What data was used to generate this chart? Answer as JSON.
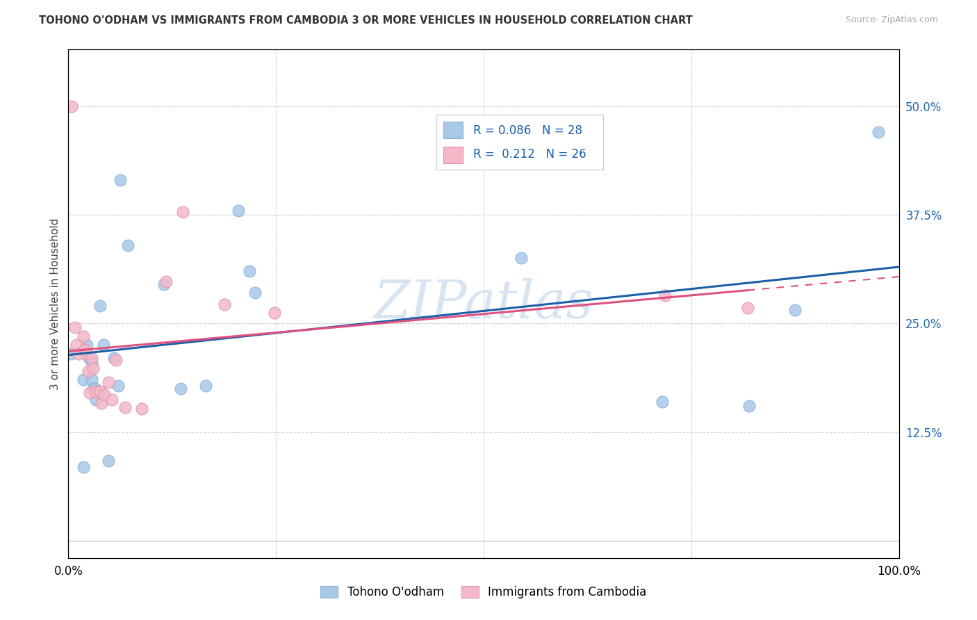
{
  "title": "TOHONO O'ODHAM VS IMMIGRANTS FROM CAMBODIA 3 OR MORE VEHICLES IN HOUSEHOLD CORRELATION CHART",
  "source": "Source: ZipAtlas.com",
  "ylabel": "3 or more Vehicles in Household",
  "watermark": "ZIPatlas",
  "blue_label": "Tohono O'odham",
  "pink_label": "Immigrants from Cambodia",
  "blue_R": 0.086,
  "blue_N": 28,
  "pink_R": 0.212,
  "pink_N": 26,
  "xlim": [
    0,
    1.0
  ],
  "ylim": [
    -0.02,
    0.565
  ],
  "ytick_positions": [
    0.125,
    0.25,
    0.375,
    0.5
  ],
  "ytick_labels": [
    "12.5%",
    "25.0%",
    "37.5%",
    "50.0%"
  ],
  "blue_color": "#a8c8e8",
  "pink_color": "#f4b8c8",
  "blue_line_color": "#1a5fa8",
  "pink_line_color": "#e05080",
  "grid_color": "#d0d0d0",
  "background_color": "#ffffff",
  "blue_x": [
    0.003,
    0.018,
    0.018,
    0.022,
    0.025,
    0.028,
    0.028,
    0.03,
    0.032,
    0.033,
    0.038,
    0.042,
    0.048,
    0.055,
    0.06,
    0.062,
    0.072,
    0.115,
    0.135,
    0.165,
    0.205,
    0.218,
    0.225,
    0.545,
    0.715,
    0.82,
    0.875,
    0.975
  ],
  "blue_y": [
    0.215,
    0.085,
    0.185,
    0.225,
    0.21,
    0.205,
    0.185,
    0.175,
    0.175,
    0.162,
    0.27,
    0.225,
    0.092,
    0.21,
    0.178,
    0.415,
    0.34,
    0.295,
    0.175,
    0.178,
    0.38,
    0.31,
    0.285,
    0.325,
    0.16,
    0.155,
    0.265,
    0.47
  ],
  "pink_x": [
    0.004,
    0.008,
    0.01,
    0.012,
    0.018,
    0.02,
    0.022,
    0.024,
    0.026,
    0.028,
    0.03,
    0.033,
    0.038,
    0.04,
    0.043,
    0.048,
    0.052,
    0.057,
    0.068,
    0.088,
    0.118,
    0.138,
    0.188,
    0.248,
    0.718,
    0.818
  ],
  "pink_y": [
    0.5,
    0.245,
    0.225,
    0.215,
    0.235,
    0.22,
    0.215,
    0.195,
    0.17,
    0.21,
    0.198,
    0.172,
    0.172,
    0.158,
    0.168,
    0.182,
    0.162,
    0.208,
    0.153,
    0.152,
    0.298,
    0.378,
    0.272,
    0.262,
    0.282,
    0.268
  ]
}
